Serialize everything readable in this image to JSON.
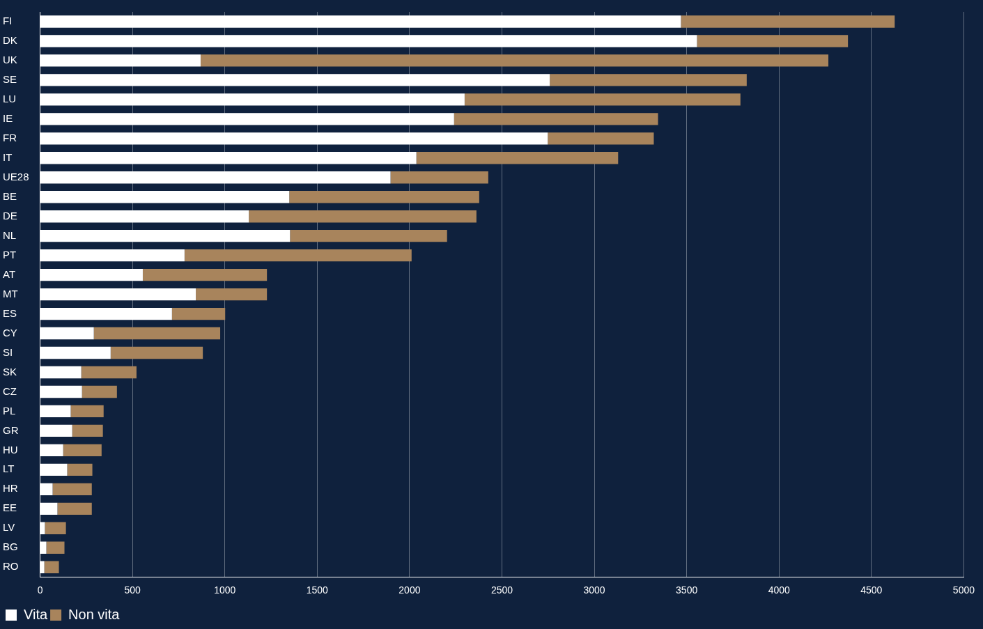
{
  "chart_data": {
    "type": "bar",
    "orientation": "horizontal",
    "stacked": true,
    "categories": [
      "FI",
      "DK",
      "UK",
      "SE",
      "LU",
      "IE",
      "FR",
      "IT",
      "UE28",
      "BE",
      "DE",
      "NL",
      "PT",
      "AT",
      "MT",
      "ES",
      "CY",
      "SI",
      "SK",
      "CZ",
      "PL",
      "GR",
      "HU",
      "LT",
      "HR",
      "EE",
      "LV",
      "BG",
      "RO"
    ],
    "series": [
      {
        "name": "Vita",
        "color": "#ffffff",
        "values": [
          3469,
          3556,
          869,
          2759,
          2298,
          2241,
          2748,
          2037,
          1897,
          1349,
          1130,
          1353,
          782,
          556,
          843,
          714,
          291,
          382,
          223,
          227,
          166,
          174,
          125,
          147,
          68,
          94,
          26,
          34,
          23
        ]
      },
      {
        "name": "Non vita",
        "color": "#a8845c",
        "values": [
          1157,
          817,
          3398,
          1066,
          1493,
          1104,
          574,
          1092,
          529,
          1028,
          1232,
          850,
          1229,
          672,
          385,
          288,
          684,
          499,
          299,
          189,
          178,
          166,
          208,
          136,
          212,
          186,
          114,
          98,
          79
        ]
      }
    ],
    "xlim": [
      0,
      5000
    ],
    "xticks": [
      0,
      500,
      1000,
      1500,
      2000,
      2500,
      3000,
      3500,
      4000,
      4500,
      5000
    ],
    "grid": "x",
    "legend": "bottom left"
  }
}
